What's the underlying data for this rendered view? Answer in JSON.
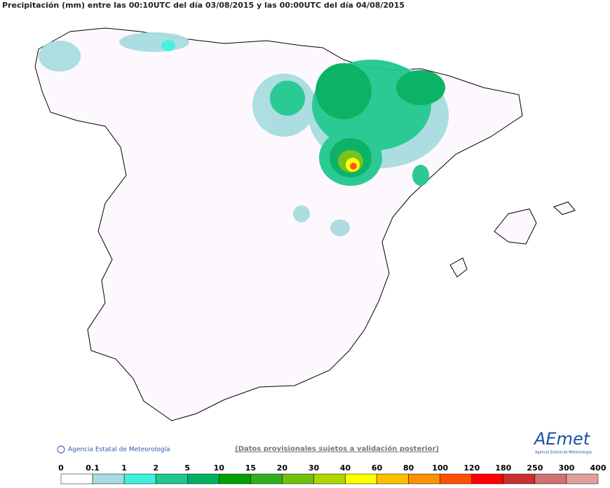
{
  "title": "Precipitación (mm) entre las 00:10UTC del día 03/08/2015 y las 00:00UTC del día 04/08/2015",
  "credit": "Agencia Estatal de Meteorología",
  "disclaimer": "(Datos provisionales sujetos a validación posterior)",
  "logo": "AEmet",
  "logo_subtitle": "Agencia Estatal de Meteorología",
  "legend": {
    "ticks": [
      0,
      0.1,
      1,
      2,
      5,
      10,
      15,
      20,
      30,
      40,
      60,
      80,
      100,
      120,
      180,
      250,
      300,
      400
    ],
    "colors": [
      "#ffffff",
      "#a8dce0",
      "#40f0e0",
      "#20c890",
      "#00b060",
      "#00a000",
      "#30b020",
      "#70c010",
      "#b0d800",
      "#ffff00",
      "#ffc000",
      "#ff9000",
      "#ff5000",
      "#ff0000",
      "#c83030",
      "#d07070",
      "#e0a0a0"
    ]
  }
}
